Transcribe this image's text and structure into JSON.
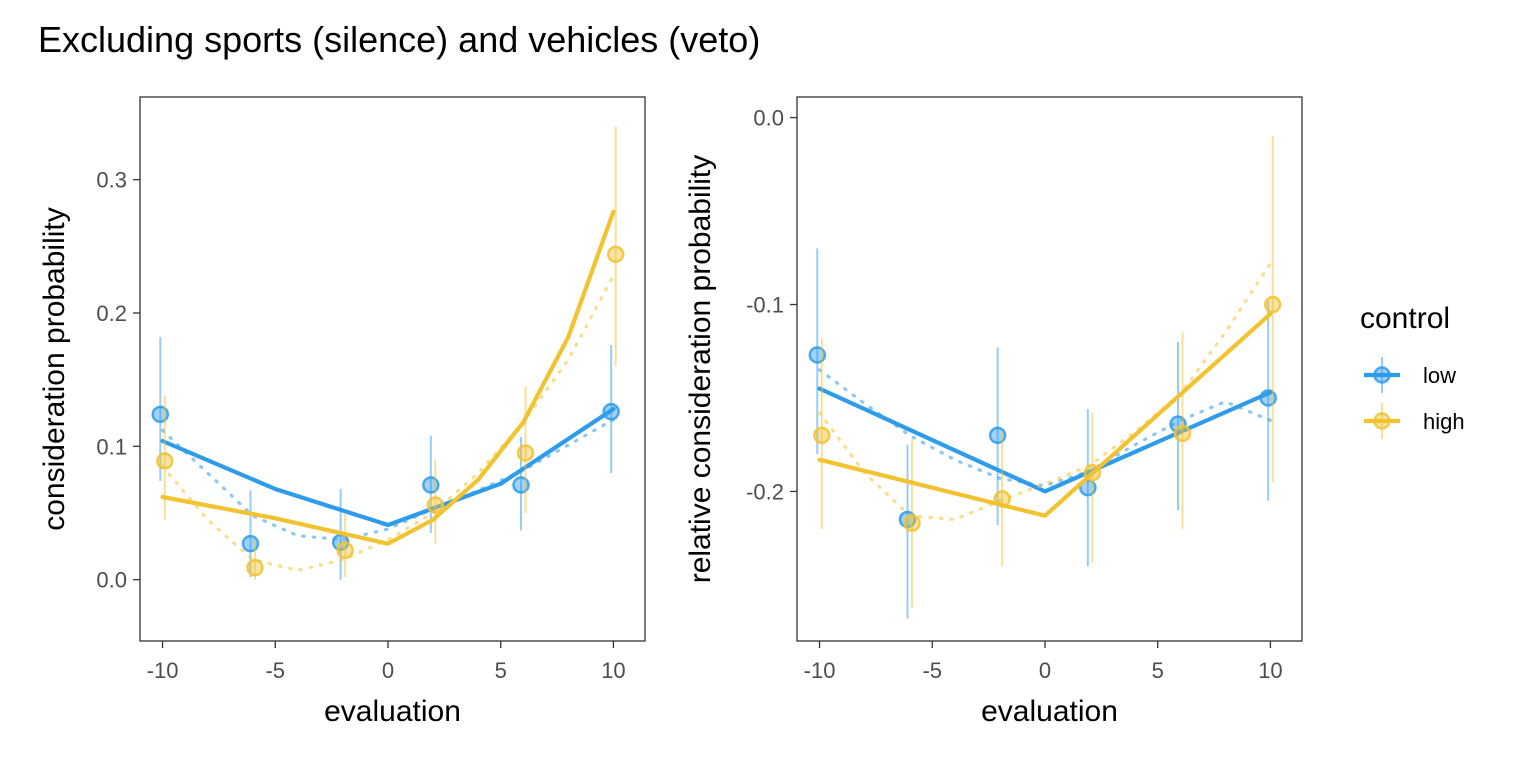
{
  "title": "Excluding sports (silence) and vehicles (veto)",
  "colors": {
    "low": "#2E9BEB",
    "high": "#F2C231",
    "frame": "#333333",
    "tick": "#4d4d4d"
  },
  "legend": {
    "title": "control",
    "entries": [
      {
        "key": "low",
        "label": "low"
      },
      {
        "key": "high",
        "label": "high"
      }
    ],
    "position": "right"
  },
  "chart_data": [
    {
      "type": "line",
      "panel": "left",
      "xlabel": "evaluation",
      "ylabel": "consideration probability",
      "xlim": [
        -11.0,
        11.4
      ],
      "ylim": [
        -0.046,
        0.362
      ],
      "xticks": [
        -10,
        -5,
        0,
        5,
        10
      ],
      "xtick_labels": [
        "-10",
        "-5",
        "0",
        "5",
        "10"
      ],
      "yticks": [
        0.0,
        0.1,
        0.2,
        0.3
      ],
      "ytick_labels": [
        "0.0",
        "0.1",
        "0.2",
        "0.3"
      ],
      "grid": false,
      "series": [
        {
          "name": "low",
          "points": [
            {
              "x": -10.1,
              "y": 0.124,
              "lo": 0.074,
              "hi": 0.182
            },
            {
              "x": -6.1,
              "y": 0.027,
              "lo": 0.002,
              "hi": 0.067
            },
            {
              "x": -2.1,
              "y": 0.028,
              "lo": 0.0,
              "hi": 0.068
            },
            {
              "x": 1.9,
              "y": 0.071,
              "lo": 0.035,
              "hi": 0.108
            },
            {
              "x": 5.9,
              "y": 0.071,
              "lo": 0.037,
              "hi": 0.107
            },
            {
              "x": 9.9,
              "y": 0.126,
              "lo": 0.08,
              "hi": 0.176
            }
          ],
          "fit": [
            [
              -10,
              0.104
            ],
            [
              -5,
              0.068
            ],
            [
              0,
              0.041
            ],
            [
              5,
              0.072
            ],
            [
              10,
              0.128
            ]
          ],
          "smooth": [
            [
              -10,
              0.112
            ],
            [
              -8,
              0.08
            ],
            [
              -6,
              0.048
            ],
            [
              -4,
              0.033
            ],
            [
              -2,
              0.03
            ],
            [
              0,
              0.038
            ],
            [
              2,
              0.053
            ],
            [
              4,
              0.067
            ],
            [
              6,
              0.082
            ],
            [
              8,
              0.101
            ],
            [
              10,
              0.12
            ]
          ]
        },
        {
          "name": "high",
          "points": [
            {
              "x": -9.9,
              "y": 0.089,
              "lo": 0.045,
              "hi": 0.138
            },
            {
              "x": -5.9,
              "y": 0.009,
              "lo": 0.0,
              "hi": 0.03
            },
            {
              "x": -1.9,
              "y": 0.022,
              "lo": 0.002,
              "hi": 0.05
            },
            {
              "x": 2.1,
              "y": 0.056,
              "lo": 0.027,
              "hi": 0.09
            },
            {
              "x": 6.1,
              "y": 0.095,
              "lo": 0.05,
              "hi": 0.145
            },
            {
              "x": 10.1,
              "y": 0.244,
              "lo": 0.16,
              "hi": 0.34
            }
          ],
          "fit": [
            [
              -10,
              0.062
            ],
            [
              -5,
              0.046
            ],
            [
              0,
              0.027
            ],
            [
              2,
              0.045
            ],
            [
              4,
              0.075
            ],
            [
              6,
              0.118
            ],
            [
              8,
              0.182
            ],
            [
              10,
              0.276
            ]
          ],
          "smooth": [
            [
              -10,
              0.085
            ],
            [
              -8,
              0.045
            ],
            [
              -6,
              0.015
            ],
            [
              -4,
              0.007
            ],
            [
              -2,
              0.015
            ],
            [
              0,
              0.03
            ],
            [
              2,
              0.05
            ],
            [
              4,
              0.08
            ],
            [
              6,
              0.118
            ],
            [
              8,
              0.165
            ],
            [
              10,
              0.228
            ]
          ]
        }
      ]
    },
    {
      "type": "line",
      "panel": "right",
      "xlabel": "evaluation",
      "ylabel": "relative consideration probability",
      "xlim": [
        -11.0,
        11.4
      ],
      "ylim": [
        -0.28,
        0.011
      ],
      "xticks": [
        -10,
        -5,
        0,
        5,
        10
      ],
      "xtick_labels": [
        "-10",
        "-5",
        "0",
        "5",
        "10"
      ],
      "yticks": [
        0.0,
        -0.1,
        -0.2
      ],
      "ytick_labels": [
        "0.0",
        "-0.1",
        "-0.2"
      ],
      "grid": false,
      "series": [
        {
          "name": "low",
          "points": [
            {
              "x": -10.1,
              "y": -0.127,
              "lo": -0.18,
              "hi": -0.07
            },
            {
              "x": -6.1,
              "y": -0.215,
              "lo": -0.268,
              "hi": -0.175
            },
            {
              "x": -2.1,
              "y": -0.17,
              "lo": -0.218,
              "hi": -0.123
            },
            {
              "x": 1.9,
              "y": -0.198,
              "lo": -0.24,
              "hi": -0.156
            },
            {
              "x": 5.9,
              "y": -0.164,
              "lo": -0.21,
              "hi": -0.12
            },
            {
              "x": 9.9,
              "y": -0.15,
              "lo": -0.205,
              "hi": -0.098
            }
          ],
          "fit": [
            [
              -10,
              -0.145
            ],
            [
              0,
              -0.2
            ],
            [
              10,
              -0.147
            ]
          ],
          "smooth": [
            [
              -10,
              -0.135
            ],
            [
              -8,
              -0.153
            ],
            [
              -6,
              -0.17
            ],
            [
              -4,
              -0.183
            ],
            [
              -2,
              -0.193
            ],
            [
              0,
              -0.197
            ],
            [
              2,
              -0.189
            ],
            [
              4,
              -0.175
            ],
            [
              6,
              -0.162
            ],
            [
              8,
              -0.152
            ],
            [
              10,
              -0.162
            ]
          ]
        },
        {
          "name": "high",
          "points": [
            {
              "x": -9.9,
              "y": -0.17,
              "lo": -0.22,
              "hi": -0.118
            },
            {
              "x": -5.9,
              "y": -0.217,
              "lo": -0.262,
              "hi": -0.172
            },
            {
              "x": -1.9,
              "y": -0.204,
              "lo": -0.24,
              "hi": -0.168
            },
            {
              "x": 2.1,
              "y": -0.19,
              "lo": -0.238,
              "hi": -0.158
            },
            {
              "x": 6.1,
              "y": -0.169,
              "lo": -0.22,
              "hi": -0.115
            },
            {
              "x": 10.1,
              "y": -0.1,
              "lo": -0.195,
              "hi": -0.01
            }
          ],
          "fit": [
            [
              -10,
              -0.183
            ],
            [
              0,
              -0.213
            ],
            [
              10,
              -0.105
            ]
          ],
          "smooth": [
            [
              -10,
              -0.158
            ],
            [
              -8,
              -0.19
            ],
            [
              -6,
              -0.213
            ],
            [
              -4,
              -0.215
            ],
            [
              -2,
              -0.205
            ],
            [
              0,
              -0.196
            ],
            [
              2,
              -0.186
            ],
            [
              4,
              -0.168
            ],
            [
              6,
              -0.148
            ],
            [
              8,
              -0.115
            ],
            [
              10,
              -0.078
            ]
          ]
        }
      ]
    }
  ]
}
